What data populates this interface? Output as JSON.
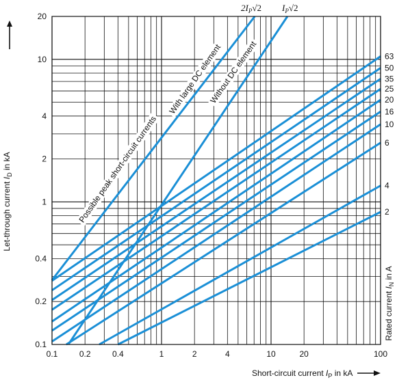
{
  "chart_data": {
    "type": "line",
    "scale": {
      "x": "log",
      "y": "log"
    },
    "xlim": [
      0.1,
      100
    ],
    "ylim": [
      0.1,
      20
    ],
    "x_tick_labels": [
      "0.1",
      "0.2",
      "0.4",
      "1",
      "2",
      "4",
      "10",
      "20",
      "100"
    ],
    "x_tick_values": [
      0.1,
      0.2,
      0.4,
      1,
      2,
      4,
      10,
      20,
      100
    ],
    "y_tick_labels": [
      "0.1",
      "0.2",
      "0.4",
      "1",
      "2",
      "4",
      "10",
      "20"
    ],
    "y_tick_values": [
      0.1,
      0.2,
      0.4,
      1,
      2,
      4,
      10,
      20
    ],
    "xlabel": "Short-circuit current I_P in kA",
    "xlabel_parts": [
      "Short-circuit current ",
      "I",
      "P",
      " in kA"
    ],
    "ylabel": "Let-through current I_D in kA",
    "ylabel_parts": [
      "Let-through current ",
      "I",
      "D",
      " in kA"
    ],
    "right_label": "Rated current I_N in A",
    "right_label_parts": [
      "Rated current ",
      "I",
      "N",
      " in A"
    ],
    "grid": true,
    "line_color": "#1a8fd6",
    "reference_lines": [
      {
        "name": "2I_P√2",
        "label_parts": [
          "2",
          "I",
          "P",
          "√2"
        ],
        "x": [
          0.1,
          7.1
        ],
        "y": [
          0.283,
          20
        ]
      },
      {
        "name": "I_P√2",
        "label_parts": [
          "",
          "I",
          "P",
          "√2"
        ],
        "x": [
          0.141,
          14.1
        ],
        "y": [
          0.1,
          20
        ]
      }
    ],
    "annotations": [
      "Possible peak short-circuit currents",
      "With large DC element",
      "Without DC element"
    ],
    "series": [
      {
        "name": "63",
        "x": [
          0.1,
          100
        ],
        "y": [
          0.28,
          10.5
        ]
      },
      {
        "name": "50",
        "x": [
          0.1,
          100
        ],
        "y": [
          0.24,
          8.7
        ]
      },
      {
        "name": "35",
        "x": [
          0.1,
          100
        ],
        "y": [
          0.205,
          7.3
        ]
      },
      {
        "name": "25",
        "x": [
          0.1,
          100
        ],
        "y": [
          0.175,
          6.2
        ]
      },
      {
        "name": "20",
        "x": [
          0.1,
          100
        ],
        "y": [
          0.145,
          5.2
        ]
      },
      {
        "name": "16",
        "x": [
          0.1,
          100
        ],
        "y": [
          0.125,
          4.3
        ]
      },
      {
        "name": "10",
        "x": [
          0.1,
          100
        ],
        "y": [
          0.105,
          3.5
        ]
      },
      {
        "name": "6",
        "x": [
          0.135,
          100
        ],
        "y": [
          0.1,
          2.6
        ]
      },
      {
        "name": "4",
        "x": [
          0.27,
          100
        ],
        "y": [
          0.1,
          1.3
        ]
      },
      {
        "name": "2",
        "x": [
          0.4,
          100
        ],
        "y": [
          0.1,
          0.85
        ]
      }
    ]
  }
}
